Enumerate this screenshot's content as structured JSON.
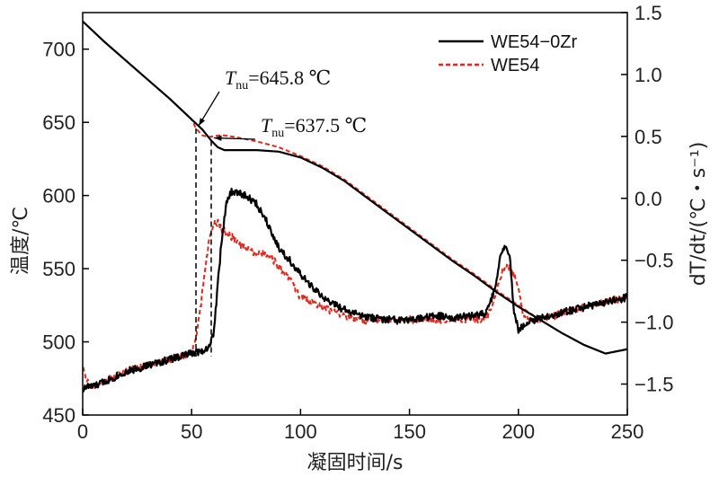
{
  "chart_data": {
    "type": "line",
    "xlabel": "凝固时间/s",
    "ylabel_left": "温度/℃",
    "ylabel_right": "dT/dt/(℃・s⁻¹)",
    "xlim": [
      0,
      250
    ],
    "ylim_left": [
      450,
      725
    ],
    "ylim_right": [
      -1.75,
      1.5
    ],
    "x_ticks": [
      0,
      50,
      100,
      150,
      200,
      250
    ],
    "y_left_ticks": [
      450,
      500,
      550,
      600,
      650,
      700
    ],
    "y_right_ticks": [
      -1.5,
      -1.0,
      -0.5,
      0.0,
      0.5,
      1.0,
      1.5
    ],
    "x_tick_labels": [
      "0",
      "50",
      "100",
      "150",
      "200",
      "250"
    ],
    "y_left_tick_labels": [
      "450",
      "500",
      "550",
      "600",
      "650",
      "700"
    ],
    "y_right_tick_labels": [
      "−1.5",
      "−1.0",
      "−0.5",
      "0.0",
      "0.5",
      "1.0",
      "1.5"
    ],
    "grid": false,
    "legend_position": "top-right",
    "colors": {
      "WE54-0Zr": "#000000",
      "WE54": "#e0291f"
    },
    "series": [
      {
        "name": "WE54-0Zr",
        "axis": "left",
        "role": "temperature",
        "x": [
          0,
          10,
          20,
          30,
          40,
          50,
          55,
          59,
          62,
          65,
          70,
          80,
          90,
          100,
          110,
          120,
          130,
          140,
          150,
          160,
          170,
          180,
          190,
          200,
          210,
          220,
          230,
          240,
          250
        ],
        "y": [
          719,
          705,
          692,
          679,
          666,
          652,
          645,
          637.5,
          633,
          631,
          631,
          631,
          630,
          626,
          619,
          610,
          599,
          588,
          577,
          566,
          555,
          545,
          534,
          524,
          515,
          506,
          498,
          492,
          495
        ]
      },
      {
        "name": "WE54",
        "axis": "left",
        "role": "temperature",
        "x": [
          0,
          10,
          20,
          30,
          40,
          50,
          52,
          55,
          58,
          62,
          65,
          70,
          80,
          90,
          100,
          110,
          120,
          130,
          140,
          150,
          160,
          170,
          180,
          190,
          200,
          210,
          220,
          230,
          240,
          250
        ],
        "y": [
          719,
          705,
          692,
          679,
          666,
          652,
          645.8,
          641,
          640,
          641,
          641,
          640,
          637,
          633,
          627,
          620,
          611,
          600,
          589,
          578,
          567,
          556,
          546,
          535,
          525,
          515,
          506,
          498,
          492,
          495
        ]
      },
      {
        "name": "WE54-0Zr",
        "axis": "right",
        "role": "cooling_rate",
        "x": [
          0,
          2,
          5,
          10,
          20,
          30,
          40,
          50,
          55,
          58,
          60,
          62,
          64,
          66,
          68,
          70,
          75,
          80,
          85,
          90,
          95,
          100,
          110,
          120,
          130,
          140,
          150,
          160,
          170,
          180,
          185,
          188,
          190,
          192,
          194,
          196,
          197,
          198,
          200,
          202,
          205,
          210,
          215,
          220,
          230,
          240,
          250
        ],
        "y": [
          -1.55,
          -1.52,
          -1.52,
          -1.48,
          -1.4,
          -1.35,
          -1.3,
          -1.25,
          -1.23,
          -1.2,
          -1.1,
          -0.7,
          -0.3,
          -0.05,
          0.05,
          0.05,
          0.02,
          -0.05,
          -0.2,
          -0.4,
          -0.5,
          -0.62,
          -0.8,
          -0.9,
          -0.96,
          -0.98,
          -0.99,
          -0.95,
          -0.96,
          -0.95,
          -0.93,
          -0.8,
          -0.65,
          -0.45,
          -0.37,
          -0.45,
          -0.7,
          -0.92,
          -1.06,
          -1.04,
          -1.0,
          -0.97,
          -0.95,
          -0.92,
          -0.88,
          -0.84,
          -0.8
        ]
      },
      {
        "name": "WE54",
        "axis": "right",
        "role": "cooling_rate",
        "x": [
          0,
          1,
          3,
          5,
          10,
          20,
          30,
          40,
          50,
          52,
          54,
          56,
          58,
          60,
          62,
          64,
          66,
          68,
          70,
          75,
          80,
          85,
          90,
          95,
          100,
          110,
          120,
          130,
          140,
          150,
          160,
          170,
          180,
          185,
          188,
          190,
          192,
          194,
          196,
          198,
          200,
          202,
          205,
          210,
          220,
          230,
          240,
          250
        ],
        "y": [
          -1.35,
          -1.4,
          -1.52,
          -1.52,
          -1.48,
          -1.4,
          -1.35,
          -1.3,
          -1.25,
          -1.15,
          -0.9,
          -0.6,
          -0.35,
          -0.2,
          -0.2,
          -0.25,
          -0.28,
          -0.3,
          -0.35,
          -0.4,
          -0.45,
          -0.45,
          -0.55,
          -0.65,
          -0.8,
          -0.88,
          -0.95,
          -0.99,
          -0.99,
          -0.98,
          -0.98,
          -0.98,
          -0.98,
          -0.97,
          -0.88,
          -0.75,
          -0.62,
          -0.55,
          -0.55,
          -0.62,
          -0.75,
          -0.92,
          -0.98,
          -0.99,
          -0.93,
          -0.88,
          -0.83,
          -0.8
        ]
      }
    ],
    "annotations": [
      {
        "label_main": "T",
        "label_sub": "nu",
        "label_rest": "=645.8 ℃",
        "x": 52,
        "temperature": 645.8
      },
      {
        "label_main": "T",
        "label_sub": "nu",
        "label_rest": "=637.5 ℃",
        "x": 59,
        "temperature": 637.5
      }
    ],
    "legend": [
      {
        "label": "WE54−0Zr",
        "series": "WE54-0Zr",
        "style": "solid"
      },
      {
        "label": "WE54",
        "series": "WE54",
        "style": "dashed"
      }
    ]
  }
}
